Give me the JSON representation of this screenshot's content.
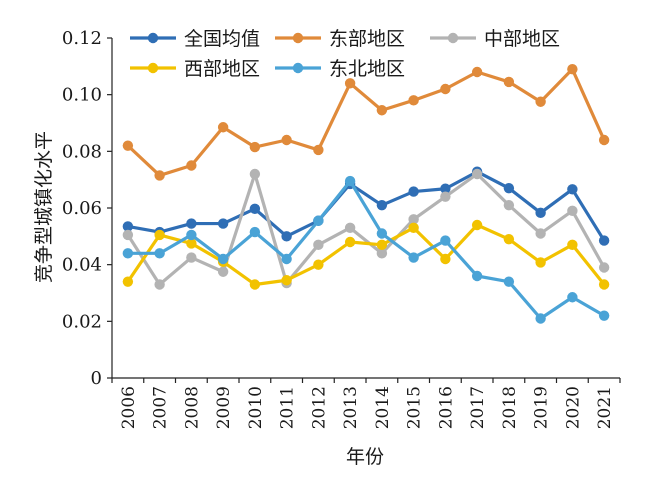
{
  "chart_data": {
    "type": "line",
    "xlabel": "年份",
    "ylabel": "竞争型城镇化水平",
    "ylim": [
      0,
      0.12
    ],
    "yticks": [
      "0",
      "0.02",
      "0.04",
      "0.06",
      "0.08",
      "0.10",
      "0.12"
    ],
    "x": [
      "2006",
      "2007",
      "2008",
      "2009",
      "2010",
      "2011",
      "2012",
      "2013",
      "2014",
      "2015",
      "2016",
      "2017",
      "2018",
      "2019",
      "2020",
      "2021"
    ],
    "grid": false,
    "legend_position": "top",
    "series": [
      {
        "name": "全国均值",
        "color": "#2f6eb5",
        "values": [
          0.0535,
          0.0515,
          0.0545,
          0.0545,
          0.0597,
          0.05,
          0.0555,
          0.0685,
          0.061,
          0.0658,
          0.0668,
          0.0728,
          0.067,
          0.0583,
          0.0666,
          0.0485
        ]
      },
      {
        "name": "东部地区",
        "color": "#e08a3a",
        "values": [
          0.082,
          0.0715,
          0.075,
          0.0885,
          0.0815,
          0.084,
          0.0805,
          0.104,
          0.0945,
          0.098,
          0.102,
          0.108,
          0.1045,
          0.0975,
          0.109,
          0.084
        ]
      },
      {
        "name": "中部地区",
        "color": "#b3b3b3",
        "values": [
          0.0505,
          0.033,
          0.0425,
          0.0375,
          0.072,
          0.0335,
          0.047,
          0.053,
          0.044,
          0.056,
          0.064,
          0.072,
          0.061,
          0.051,
          0.059,
          0.039
        ]
      },
      {
        "name": "西部地区",
        "color": "#f2c200",
        "values": [
          0.034,
          0.0505,
          0.0475,
          0.041,
          0.033,
          0.0345,
          0.04,
          0.048,
          0.047,
          0.053,
          0.042,
          0.054,
          0.049,
          0.0408,
          0.047,
          0.033
        ]
      },
      {
        "name": "东北地区",
        "color": "#4aa3d6",
        "values": [
          0.044,
          0.044,
          0.0505,
          0.042,
          0.0515,
          0.042,
          0.0555,
          0.0695,
          0.051,
          0.0425,
          0.0485,
          0.036,
          0.034,
          0.021,
          0.0285,
          0.022
        ]
      }
    ]
  }
}
